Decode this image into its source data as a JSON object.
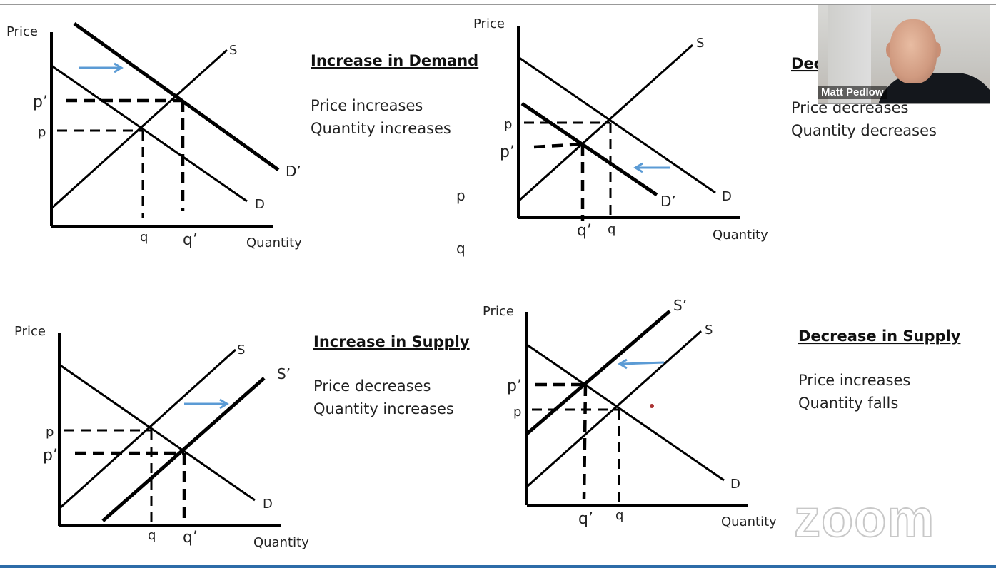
{
  "panels": {
    "inc_demand": {
      "title": "Increase in Demand",
      "effects": [
        "Price increases",
        "Quantity increases"
      ],
      "labels": {
        "price": "Price",
        "quantity": "Quantity",
        "p": "p",
        "p_prime": "p’",
        "q": "q",
        "q_prime": "q’",
        "S": "S",
        "D": "D",
        "D_prime": "D’"
      }
    },
    "dec_demand": {
      "title": "Dec",
      "effects": [
        "Price decreases",
        "Quantity decreases"
      ],
      "labels": {
        "price": "Price",
        "quantity": "Quantity",
        "p": "p",
        "p_prime": "p’",
        "q": "q",
        "q_prime": "q’",
        "S": "S",
        "D": "D",
        "D_prime": "D’"
      },
      "stray": {
        "p": "p",
        "q": "q"
      }
    },
    "inc_supply": {
      "title": "Increase in Supply",
      "effects": [
        "Price decreases",
        "Quantity increases"
      ],
      "labels": {
        "price": "Price",
        "quantity": "Quantity",
        "p": "p",
        "p_prime": "p’",
        "q": "q",
        "q_prime": "q’",
        "S": "S",
        "S_prime": "S’",
        "D": "D"
      }
    },
    "dec_supply": {
      "title": "Decrease in Supply",
      "effects": [
        "Price increases",
        "Quantity falls"
      ],
      "labels": {
        "price": "Price",
        "quantity": "Quantity",
        "p": "p",
        "p_prime": "p’",
        "q": "q",
        "q_prime": "q’",
        "S": "S",
        "S_prime": "S’",
        "D": "D"
      }
    }
  },
  "webcam": {
    "name": "Matt Pedlow"
  },
  "watermark": "zoom",
  "colors": {
    "arrow": "#5b9bd5",
    "accent_bar": "#2d6ca8"
  }
}
